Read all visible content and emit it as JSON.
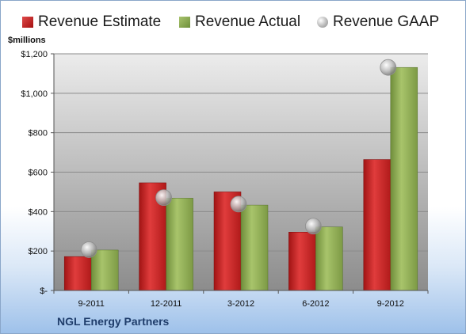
{
  "legend": {
    "estimate": "Revenue Estimate",
    "actual": "Revenue Actual",
    "gaap": "Revenue GAAP"
  },
  "units_label": "$millions",
  "company_name": "NGL Energy Partners",
  "colors": {
    "estimate": "#c0201e",
    "actual": "#8fae55",
    "gaap": "#b8b8b8",
    "plot_top": "#ececec",
    "plot_bottom": "#8c8c8c"
  },
  "chart_data": {
    "type": "bar",
    "categories": [
      "9-2011",
      "12-2011",
      "3-2012",
      "6-2012",
      "9-2012"
    ],
    "series": [
      {
        "name": "Revenue Estimate",
        "values": [
          172,
          546,
          500,
          296,
          664
        ]
      },
      {
        "name": "Revenue Actual",
        "values": [
          205,
          468,
          433,
          322,
          1131
        ]
      },
      {
        "name": "Revenue GAAP",
        "values": [
          207,
          471,
          438,
          326,
          1131
        ],
        "marker": "circle"
      }
    ],
    "ylim": [
      0,
      1200
    ],
    "yticks": [
      0,
      200,
      400,
      600,
      800,
      1000,
      1200
    ],
    "ytick_labels": [
      "$-",
      "$200",
      "$400",
      "$600",
      "$800",
      "$1,000",
      "$1,200"
    ],
    "ylabel": "$millions",
    "grid": true,
    "legend_position": "top"
  }
}
